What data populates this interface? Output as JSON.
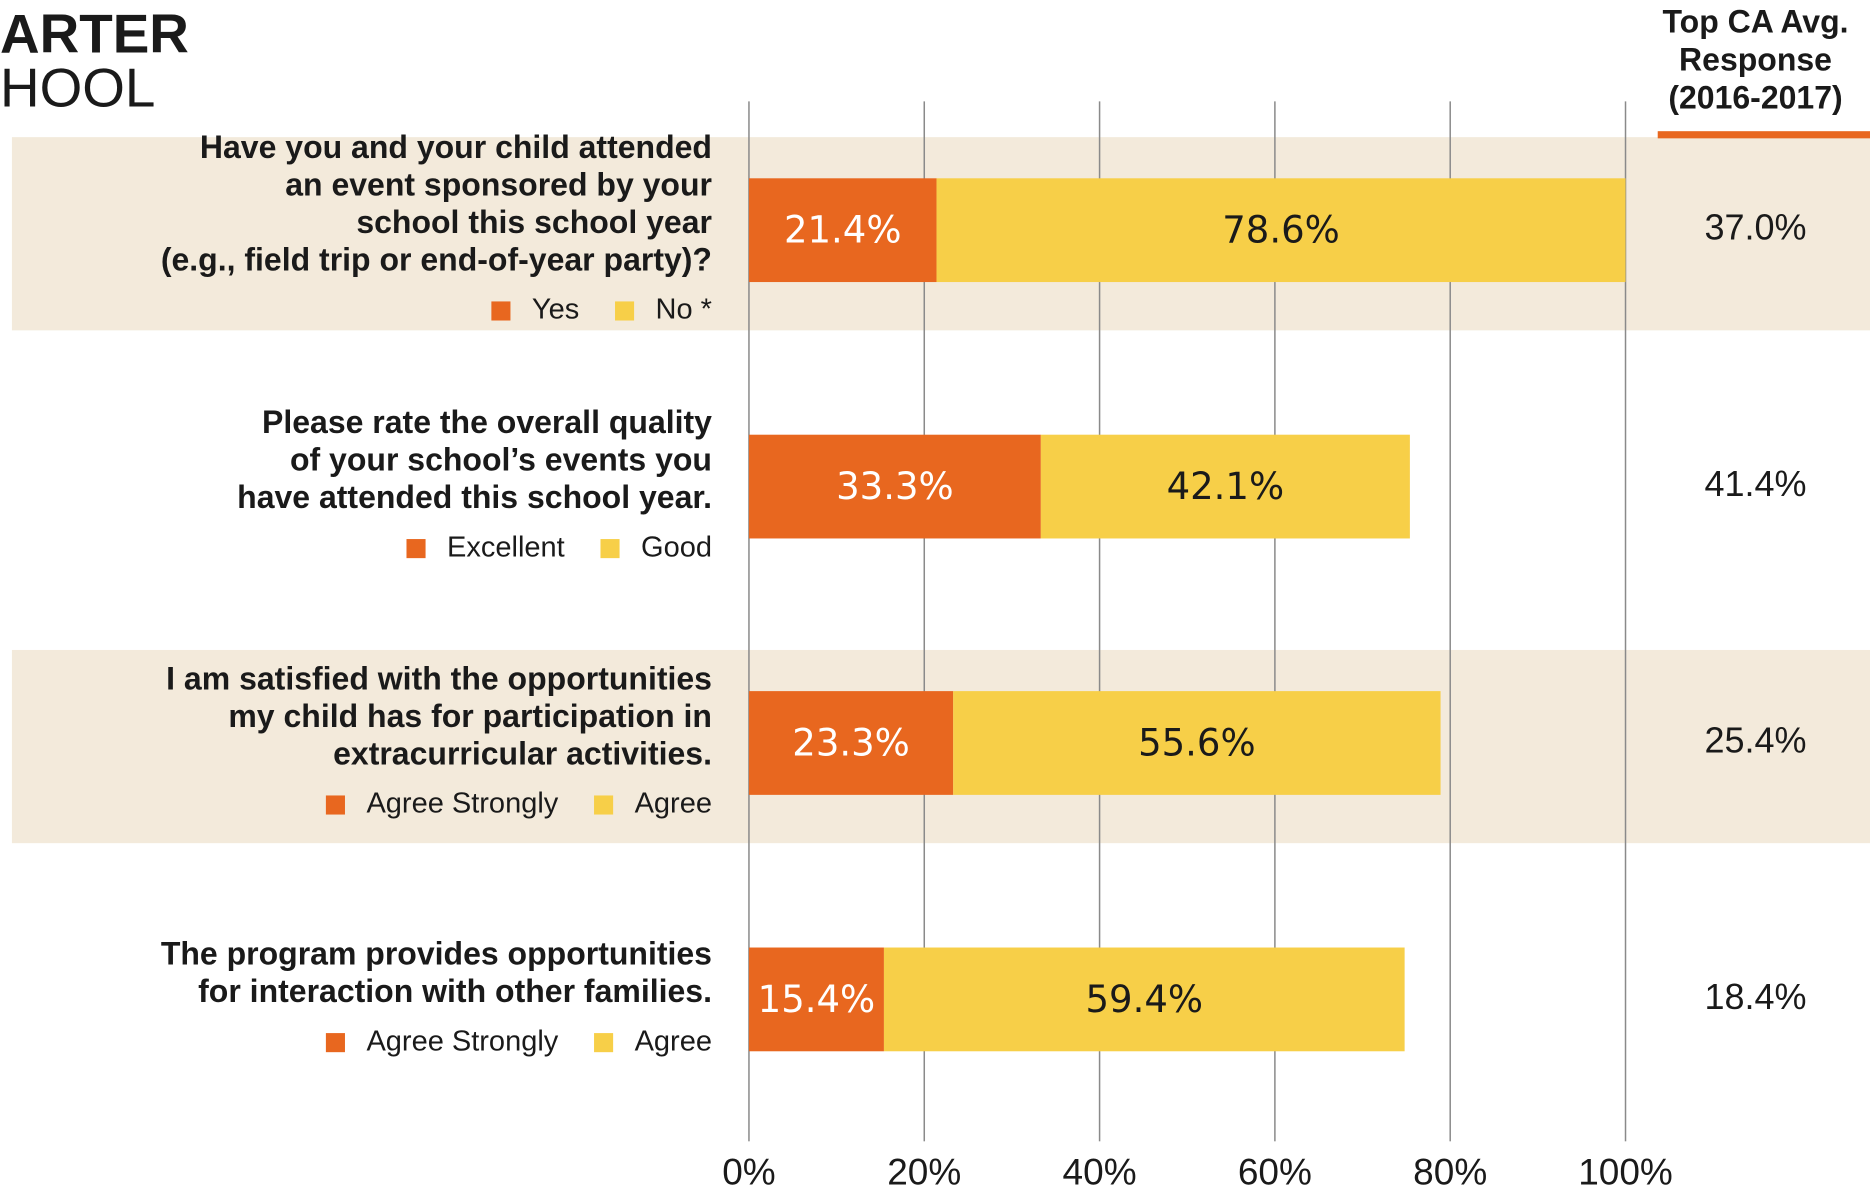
{
  "chart_data": {
    "type": "bar",
    "orientation": "horizontal",
    "stacked": true,
    "logo_lines": [
      "ARTER",
      "HOOL"
    ],
    "avg_header_lines": [
      "Top CA Avg.",
      "Response",
      "(2016-2017)"
    ],
    "xlim": [
      0,
      100
    ],
    "xticks": [
      {
        "value": 0,
        "label": "0%"
      },
      {
        "value": 20,
        "label": "20%"
      },
      {
        "value": 40,
        "label": "40%"
      },
      {
        "value": 60,
        "label": "60%"
      },
      {
        "value": 80,
        "label": "80%"
      },
      {
        "value": 100,
        "label": "100%"
      }
    ],
    "grid": true,
    "rows": [
      {
        "label_lines": [
          "Have you and your child attended",
          "an event sponsored by your",
          "school this school year",
          "(e.g., field trip or end-of-year party)?"
        ],
        "series": [
          {
            "name": "Yes",
            "color": "#e8671f"
          },
          {
            "name": "No *",
            "color": "#f7cf48"
          }
        ],
        "values": [
          21.4,
          78.6
        ],
        "value_labels": [
          "21.4%",
          "78.6%"
        ],
        "avg": 37.0,
        "avg_label": "37.0%",
        "shaded": true
      },
      {
        "label_lines": [
          "Please rate the overall quality",
          "of your school’s events you",
          "have attended this school year."
        ],
        "series": [
          {
            "name": "Excellent",
            "color": "#e8671f"
          },
          {
            "name": "Good",
            "color": "#f7cf48"
          }
        ],
        "values": [
          33.3,
          42.1
        ],
        "value_labels": [
          "33.3%",
          "42.1%"
        ],
        "avg": 41.4,
        "avg_label": "41.4%",
        "shaded": false
      },
      {
        "label_lines": [
          "I am satisfied with the opportunities",
          "my child has for participation in",
          "extracurricular activities."
        ],
        "series": [
          {
            "name": "Agree Strongly",
            "color": "#e8671f"
          },
          {
            "name": "Agree",
            "color": "#f7cf48"
          }
        ],
        "values": [
          23.3,
          55.6
        ],
        "value_labels": [
          "23.3%",
          "55.6%"
        ],
        "avg": 25.4,
        "avg_label": "25.4%",
        "shaded": true
      },
      {
        "label_lines": [
          "The program provides opportunities",
          "for interaction with other families."
        ],
        "series": [
          {
            "name": "Agree Strongly",
            "color": "#e8671f"
          },
          {
            "name": "Agree",
            "color": "#f7cf48"
          }
        ],
        "values": [
          15.4,
          59.4
        ],
        "value_labels": [
          "15.4%",
          "59.4%"
        ],
        "avg": 18.4,
        "avg_label": "18.4%",
        "shaded": false
      }
    ]
  }
}
